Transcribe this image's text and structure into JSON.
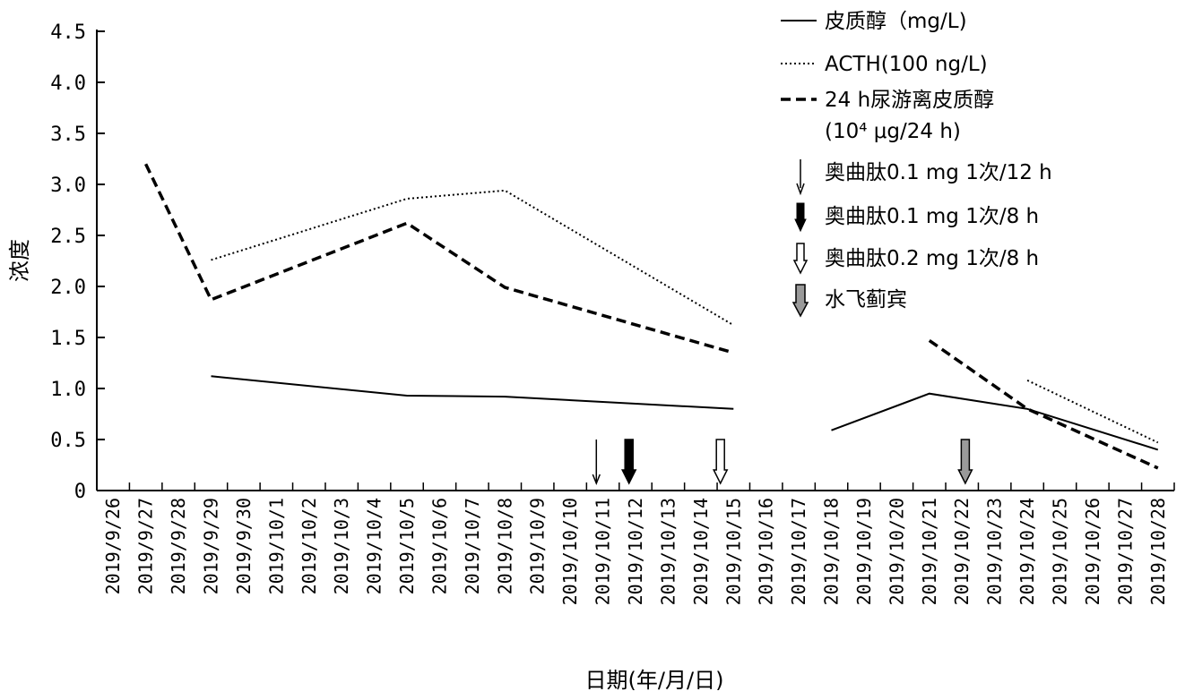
{
  "chart_data": {
    "type": "line",
    "xlabel": "日期(年/月/日)",
    "ylabel": "浓度",
    "ylim": [
      0,
      4.5
    ],
    "yticks": [
      "0",
      "0.5",
      "1.0",
      "1.5",
      "2.0",
      "2.5",
      "3.0",
      "3.5",
      "4.0",
      "4.5"
    ],
    "categories": [
      "2019/9/26",
      "2019/9/27",
      "2019/9/28",
      "2019/9/29",
      "2019/9/30",
      "2019/10/1",
      "2019/10/2",
      "2019/10/3",
      "2019/10/4",
      "2019/10/5",
      "2019/10/6",
      "2019/10/7",
      "2019/10/8",
      "2019/10/9",
      "2019/10/10",
      "2019/10/11",
      "2019/10/12",
      "2019/10/13",
      "2019/10/14",
      "2019/10/15",
      "2019/10/16",
      "2019/10/17",
      "2019/10/18",
      "2019/10/19",
      "2019/10/20",
      "2019/10/21",
      "2019/10/22",
      "2019/10/23",
      "2019/10/24",
      "2019/10/25",
      "2019/10/26",
      "2019/10/27",
      "2019/10/28"
    ],
    "series": [
      {
        "name": "皮质醇（mg/L)",
        "style": "solid",
        "segments": [
          [
            [
              "2019/9/29",
              1.12
            ],
            [
              "2019/10/5",
              0.93
            ],
            [
              "2019/10/8",
              0.92
            ],
            [
              "2019/10/15",
              0.8
            ]
          ],
          [
            [
              "2019/10/18",
              0.59
            ],
            [
              "2019/10/21",
              0.95
            ],
            [
              "2019/10/24",
              0.8
            ],
            [
              "2019/10/28",
              0.4
            ]
          ]
        ]
      },
      {
        "name": "ACTH(100 ng/L)",
        "style": "dotted",
        "segments": [
          [
            [
              "2019/9/29",
              2.26
            ],
            [
              "2019/10/5",
              2.86
            ],
            [
              "2019/10/8",
              2.94
            ],
            [
              "2019/10/15",
              1.62
            ]
          ],
          [
            [
              "2019/10/24",
              1.08
            ],
            [
              "2019/10/28",
              0.47
            ]
          ]
        ]
      },
      {
        "name_line1": "24 h尿游离皮质醇",
        "name_line2": "(10⁴ μg/24 h)",
        "style": "dashed",
        "segments": [
          [
            [
              "2019/9/27",
              3.2
            ],
            [
              "2019/9/29",
              1.87
            ],
            [
              "2019/10/5",
              2.62
            ],
            [
              "2019/10/8",
              1.99
            ],
            [
              "2019/10/15",
              1.35
            ]
          ],
          [
            [
              "2019/10/21",
              1.47
            ],
            [
              "2019/10/24",
              0.8
            ],
            [
              "2019/10/28",
              0.22
            ]
          ]
        ]
      }
    ],
    "markers": [
      {
        "name": "奥曲肽0.1 mg 1次/12 h",
        "type": "thin-arrow",
        "date": "2019/10/11",
        "offset": -0.2
      },
      {
        "name": "奥曲肽0.1 mg 1次/8 h",
        "type": "black-arrow",
        "date": "2019/10/12",
        "offset": -0.2
      },
      {
        "name": "奥曲肽0.2 mg 1次/8 h",
        "type": "white-arrow",
        "date": "2019/10/15",
        "offset": -0.4
      },
      {
        "name": "水飞蓟宾",
        "type": "gray-arrow",
        "date": "2019/10/22",
        "offset": 0.1
      }
    ],
    "legend_position": "top-right"
  },
  "colors": {
    "line": "#000000",
    "gray_arrow": "#9a9a9a",
    "axis": "#000000"
  }
}
